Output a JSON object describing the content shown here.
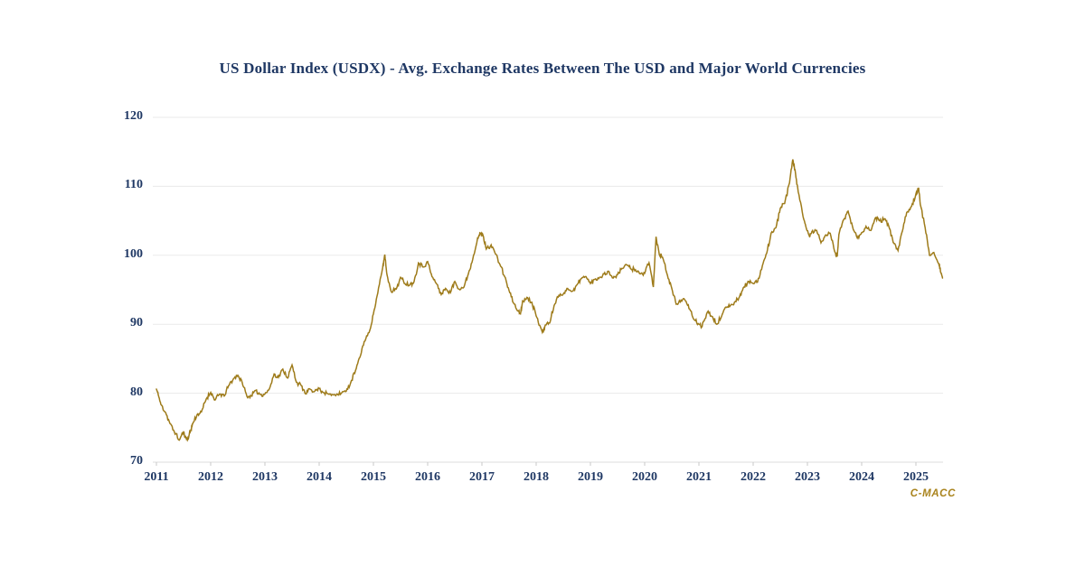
{
  "chart_data": {
    "type": "line",
    "title": "US Dollar Index (USDX) - Avg. Exchange Rates Between The USD and Major World Currencies",
    "xlabel": "",
    "ylabel": "",
    "x_ticks": [
      2011,
      2012,
      2013,
      2014,
      2015,
      2016,
      2017,
      2018,
      2019,
      2020,
      2021,
      2022,
      2023,
      2024,
      2025
    ],
    "y_ticks": [
      70,
      80,
      90,
      100,
      110,
      120
    ],
    "xlim": [
      2011,
      2025.5
    ],
    "ylim": [
      70,
      120
    ],
    "grid": "horizontal",
    "legend": "none",
    "text_color": "#1F3864",
    "grid_color": "#EAEAEA",
    "axis_color": "#DCDCDC",
    "tick_color": "#C9C9C9",
    "style": {
      "line_width": 1.5,
      "jitter": 0.35,
      "seed": 11,
      "upsample": 6
    },
    "series": [
      {
        "name": "US Dollar Index (USDX)",
        "color": "#9E7B1A",
        "points": [
          [
            2011,
            80.6
          ],
          [
            2011.04,
            79.6
          ],
          [
            2011.08,
            78.4
          ],
          [
            2011.17,
            77.2
          ],
          [
            2011.25,
            75.6
          ],
          [
            2011.33,
            74.4
          ],
          [
            2011.42,
            73.2
          ],
          [
            2011.5,
            74.4
          ],
          [
            2011.54,
            73.6
          ],
          [
            2011.58,
            73.3
          ],
          [
            2011.63,
            74.6
          ],
          [
            2011.67,
            75.6
          ],
          [
            2011.75,
            76.9
          ],
          [
            2011.83,
            77.3
          ],
          [
            2011.92,
            79.2
          ],
          [
            2012,
            80.1
          ],
          [
            2012.08,
            79.0
          ],
          [
            2012.17,
            79.9
          ],
          [
            2012.25,
            79.6
          ],
          [
            2012.33,
            81.1
          ],
          [
            2012.42,
            82.1
          ],
          [
            2012.5,
            82.6
          ],
          [
            2012.58,
            81.6
          ],
          [
            2012.67,
            79.5
          ],
          [
            2012.75,
            79.6
          ],
          [
            2012.83,
            80.4
          ],
          [
            2012.92,
            79.8
          ],
          [
            2013,
            79.9
          ],
          [
            2013.08,
            80.6
          ],
          [
            2013.17,
            82.8
          ],
          [
            2013.25,
            82.3
          ],
          [
            2013.33,
            83.5
          ],
          [
            2013.42,
            82.2
          ],
          [
            2013.5,
            84.1
          ],
          [
            2013.58,
            81.6
          ],
          [
            2013.67,
            81.1
          ],
          [
            2013.75,
            79.9
          ],
          [
            2013.83,
            80.6
          ],
          [
            2013.92,
            80.3
          ],
          [
            2014,
            80.7
          ],
          [
            2014.08,
            80.1
          ],
          [
            2014.17,
            79.9
          ],
          [
            2014.25,
            79.8
          ],
          [
            2014.33,
            79.9
          ],
          [
            2014.42,
            80.1
          ],
          [
            2014.5,
            80.3
          ],
          [
            2014.58,
            81.5
          ],
          [
            2014.67,
            83.3
          ],
          [
            2014.75,
            85.2
          ],
          [
            2014.83,
            87.5
          ],
          [
            2014.92,
            88.8
          ],
          [
            2015,
            91.5
          ],
          [
            2015.08,
            94.5
          ],
          [
            2015.17,
            98.2
          ],
          [
            2015.21,
            100.1
          ],
          [
            2015.25,
            97.2
          ],
          [
            2015.33,
            94.7
          ],
          [
            2015.42,
            95.1
          ],
          [
            2015.5,
            96.8
          ],
          [
            2015.58,
            95.9
          ],
          [
            2015.67,
            95.7
          ],
          [
            2015.75,
            96.2
          ],
          [
            2015.83,
            98.9
          ],
          [
            2015.92,
            98.3
          ],
          [
            2016,
            99.1
          ],
          [
            2016.08,
            96.9
          ],
          [
            2016.17,
            95.8
          ],
          [
            2016.25,
            94.3
          ],
          [
            2016.33,
            95.2
          ],
          [
            2016.42,
            94.6
          ],
          [
            2016.5,
            96.2
          ],
          [
            2016.58,
            95.1
          ],
          [
            2016.67,
            95.4
          ],
          [
            2016.75,
            97.3
          ],
          [
            2016.83,
            99.4
          ],
          [
            2016.92,
            102.5
          ],
          [
            2016.97,
            103.2
          ],
          [
            2017.02,
            102.9
          ],
          [
            2017.08,
            100.9
          ],
          [
            2017.17,
            101.5
          ],
          [
            2017.25,
            100.2
          ],
          [
            2017.33,
            98.7
          ],
          [
            2017.42,
            96.9
          ],
          [
            2017.5,
            94.9
          ],
          [
            2017.58,
            93.1
          ],
          [
            2017.67,
            91.9
          ],
          [
            2017.71,
            91.5
          ],
          [
            2017.75,
            93.4
          ],
          [
            2017.83,
            93.9
          ],
          [
            2017.92,
            93.2
          ],
          [
            2018,
            91.2
          ],
          [
            2018.08,
            89.6
          ],
          [
            2018.13,
            88.8
          ],
          [
            2018.17,
            89.9
          ],
          [
            2018.25,
            90.2
          ],
          [
            2018.33,
            92.7
          ],
          [
            2018.42,
            94.2
          ],
          [
            2018.5,
            94.4
          ],
          [
            2018.58,
            95.2
          ],
          [
            2018.67,
            94.8
          ],
          [
            2018.75,
            95.7
          ],
          [
            2018.83,
            96.6
          ],
          [
            2018.92,
            96.9
          ],
          [
            2019,
            95.9
          ],
          [
            2019.08,
            96.5
          ],
          [
            2019.17,
            96.8
          ],
          [
            2019.25,
            97.3
          ],
          [
            2019.33,
            97.7
          ],
          [
            2019.42,
            96.7
          ],
          [
            2019.5,
            97.2
          ],
          [
            2019.58,
            98.1
          ],
          [
            2019.67,
            98.6
          ],
          [
            2019.75,
            98.0
          ],
          [
            2019.83,
            97.9
          ],
          [
            2019.92,
            97.3
          ],
          [
            2020,
            97.4
          ],
          [
            2020.08,
            98.9
          ],
          [
            2020.16,
            95.4
          ],
          [
            2020.21,
            102.7
          ],
          [
            2020.27,
            100.1
          ],
          [
            2020.33,
            99.7
          ],
          [
            2020.42,
            97.1
          ],
          [
            2020.5,
            95.2
          ],
          [
            2020.58,
            92.9
          ],
          [
            2020.67,
            93.5
          ],
          [
            2020.75,
            93.4
          ],
          [
            2020.83,
            92.2
          ],
          [
            2020.92,
            90.6
          ],
          [
            2021,
            90.0
          ],
          [
            2021.05,
            89.6
          ],
          [
            2021.08,
            90.4
          ],
          [
            2021.17,
            91.9
          ],
          [
            2021.25,
            91.1
          ],
          [
            2021.33,
            90.0
          ],
          [
            2021.42,
            91.2
          ],
          [
            2021.5,
            92.5
          ],
          [
            2021.58,
            92.7
          ],
          [
            2021.67,
            93.3
          ],
          [
            2021.75,
            94.0
          ],
          [
            2021.83,
            95.4
          ],
          [
            2021.92,
            96.2
          ],
          [
            2022,
            95.9
          ],
          [
            2022.08,
            96.1
          ],
          [
            2022.17,
            98.5
          ],
          [
            2022.25,
            100.3
          ],
          [
            2022.33,
            103.2
          ],
          [
            2022.42,
            104.0
          ],
          [
            2022.5,
            106.8
          ],
          [
            2022.58,
            107.5
          ],
          [
            2022.67,
            110.5
          ],
          [
            2022.73,
            113.9
          ],
          [
            2022.78,
            111.9
          ],
          [
            2022.83,
            109.2
          ],
          [
            2022.92,
            105.6
          ],
          [
            2022.97,
            104.2
          ],
          [
            2023.04,
            102.7
          ],
          [
            2023.08,
            103.4
          ],
          [
            2023.17,
            103.6
          ],
          [
            2023.25,
            101.8
          ],
          [
            2023.33,
            102.9
          ],
          [
            2023.42,
            103.2
          ],
          [
            2023.5,
            100.6
          ],
          [
            2023.55,
            99.9
          ],
          [
            2023.58,
            103.0
          ],
          [
            2023.67,
            105.2
          ],
          [
            2023.75,
            106.4
          ],
          [
            2023.83,
            104.2
          ],
          [
            2023.92,
            102.5
          ],
          [
            2024,
            103.3
          ],
          [
            2024.08,
            104.2
          ],
          [
            2024.17,
            103.6
          ],
          [
            2024.25,
            105.4
          ],
          [
            2024.33,
            105.0
          ],
          [
            2024.42,
            105.3
          ],
          [
            2024.5,
            104.2
          ],
          [
            2024.58,
            101.9
          ],
          [
            2024.67,
            100.7
          ],
          [
            2024.75,
            103.5
          ],
          [
            2024.83,
            106.2
          ],
          [
            2024.92,
            107.1
          ],
          [
            2025,
            108.9
          ],
          [
            2025.05,
            109.8
          ],
          [
            2025.08,
            107.4
          ],
          [
            2025.17,
            104.0
          ],
          [
            2025.25,
            100.0
          ],
          [
            2025.33,
            100.4
          ],
          [
            2025.42,
            98.8
          ],
          [
            2025.46,
            97.5
          ],
          [
            2025.49,
            96.7
          ]
        ]
      }
    ]
  },
  "branding": {
    "watermark": "C-MACC",
    "color": "#A9831C"
  }
}
